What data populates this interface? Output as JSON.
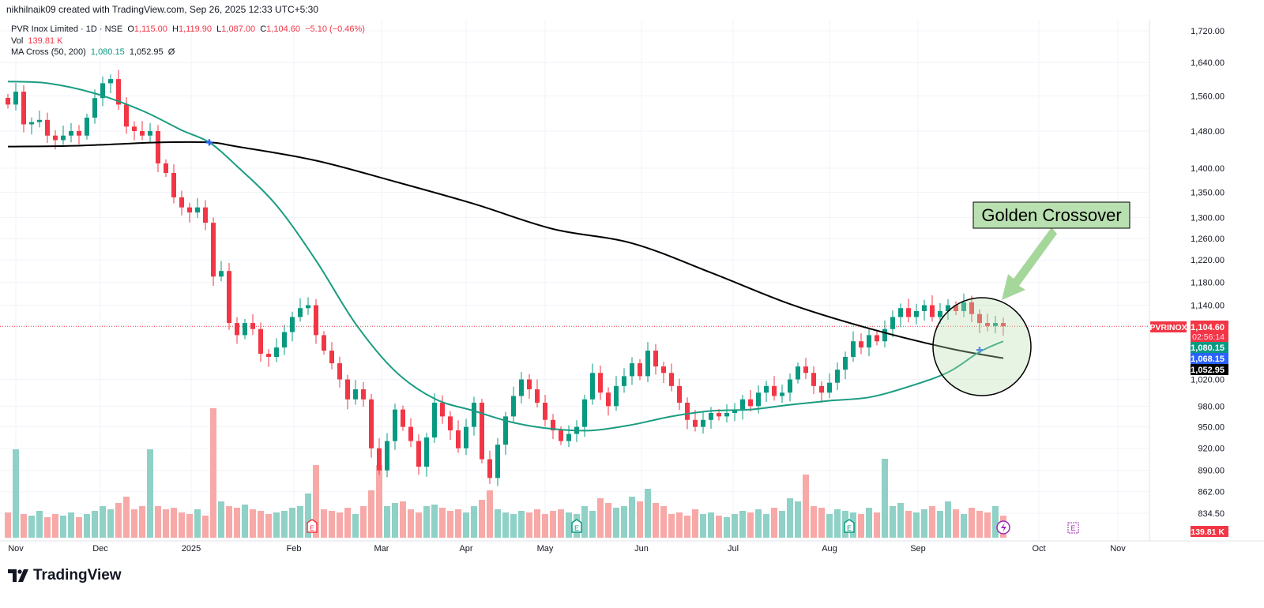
{
  "credit": "nikhilnaik09 created with TradingView.com, Sep 26, 2025 12:33 UTC+5:30",
  "legend": {
    "symbol": "PVR Inox Limited · 1D · NSE",
    "o_label": "O",
    "o": "1,115.00",
    "h_label": "H",
    "h": "1,119.90",
    "l_label": "L",
    "l": "1,087.00",
    "c_label": "C",
    "c": "1,104.60",
    "change": "−5.10 (−0.46%)",
    "vol_label": "Vol",
    "vol": "139.81 K",
    "ma_label": "MA Cross (50, 200)",
    "ma50": "1,080.15",
    "ma200": "1,052.95",
    "ma_icon": "Ø"
  },
  "labels": {
    "ticker": "PVRINOX",
    "price": "1,104.60",
    "countdown": "02:56:14",
    "ma50": "1,080.15",
    "blue": "1,068.15",
    "ma200": "1,052.95",
    "volume": "139.81 K"
  },
  "annotation": "Golden Crossover",
  "brand": "TradingView",
  "colors": {
    "up": "#089981",
    "down": "#f23645",
    "ma50": "#1a9c80",
    "ma200": "#000000",
    "vol_up": "#8fd1c6",
    "vol_down": "#f7a9a8",
    "annotation_bg": "#b9e0b0",
    "cross": "#2962ff"
  },
  "chart_data": {
    "type": "candlestick",
    "title": "PVR Inox Limited · 1D · NSE",
    "scale": "log",
    "ylim": [
      834.5,
      1720
    ],
    "y_ticks": [
      "1,720.00",
      "1,640.00",
      "1,560.00",
      "1,480.00",
      "1,400.00",
      "1,350.00",
      "1,300.00",
      "1,260.00",
      "1,220.00",
      "1,180.00",
      "1,140.00",
      "1,020.00",
      "980.00",
      "950.00",
      "920.00",
      "890.00",
      "862.00",
      "834.50"
    ],
    "y_tick_values": [
      1720,
      1640,
      1560,
      1480,
      1400,
      1350,
      1300,
      1260,
      1220,
      1180,
      1140,
      1020,
      980,
      950,
      920,
      890,
      862,
      834.5
    ],
    "x_ticks": [
      "Nov",
      "Dec",
      "2025",
      "Feb",
      "Mar",
      "Apr",
      "May",
      "Jun",
      "Jul",
      "Aug",
      "Sep",
      "Oct",
      "Nov"
    ],
    "x_tick_index": [
      1,
      11.7,
      23.2,
      36.2,
      47.3,
      58,
      68,
      80.2,
      91.8,
      104,
      115.2,
      130.5,
      140.5
    ],
    "closes": [
      1540,
      1570,
      1495,
      1500,
      1505,
      1470,
      1460,
      1470,
      1480,
      1470,
      1510,
      1555,
      1590,
      1600,
      1540,
      1490,
      1480,
      1470,
      1480,
      1410,
      1390,
      1340,
      1320,
      1310,
      1320,
      1290,
      1190,
      1200,
      1110,
      1090,
      1110,
      1100,
      1060,
      1055,
      1070,
      1095,
      1120,
      1135,
      1140,
      1090,
      1065,
      1045,
      1020,
      990,
      1005,
      990,
      920,
      890,
      930,
      975,
      950,
      930,
      895,
      935,
      985,
      965,
      945,
      920,
      950,
      985,
      905,
      880,
      925,
      965,
      995,
      1020,
      1005,
      985,
      960,
      945,
      930,
      940,
      950,
      990,
      1030,
      1000,
      980,
      1010,
      1025,
      1045,
      1025,
      1065,
      1040,
      1030,
      1010,
      985,
      960,
      950,
      960,
      970,
      965,
      970,
      975,
      990,
      980,
      1000,
      1010,
      995,
      1000,
      1020,
      1040,
      1030,
      1010,
      1000,
      1015,
      1035,
      1055,
      1080,
      1070,
      1090,
      1080,
      1100,
      1120,
      1135,
      1120,
      1130,
      1140,
      1120,
      1130,
      1140,
      1130,
      1145,
      1125,
      1110,
      1105,
      1110,
      1104.6
    ],
    "volumes_k": [
      160,
      560,
      150,
      140,
      170,
      130,
      150,
      140,
      160,
      130,
      150,
      170,
      200,
      180,
      220,
      260,
      180,
      200,
      560,
      200,
      180,
      190,
      160,
      150,
      180,
      140,
      820,
      230,
      200,
      190,
      210,
      180,
      170,
      150,
      160,
      170,
      190,
      200,
      280,
      460,
      180,
      170,
      160,
      190,
      150,
      200,
      300,
      460,
      200,
      220,
      230,
      180,
      160,
      200,
      210,
      190,
      170,
      180,
      160,
      200,
      240,
      300,
      180,
      160,
      150,
      170,
      160,
      180,
      150,
      170,
      180,
      160,
      150,
      200,
      170,
      250,
      220,
      190,
      200,
      260,
      230,
      310,
      220,
      200,
      150,
      160,
      140,
      180,
      150,
      160,
      140,
      130,
      150,
      170,
      160,
      180,
      150,
      190,
      170,
      250,
      230,
      400,
      200,
      190,
      150,
      180,
      170,
      160,
      150,
      190,
      160,
      500,
      200,
      220,
      170,
      160,
      180,
      200,
      170,
      230,
      180,
      150,
      190,
      170,
      160,
      200,
      139.81
    ],
    "series": [
      {
        "name": "MA 50",
        "points": [
          [
            0,
            1594
          ],
          [
            5,
            1590
          ],
          [
            11,
            1566
          ],
          [
            17,
            1526
          ],
          [
            22,
            1482
          ],
          [
            25.5,
            1455
          ],
          [
            29,
            1404
          ],
          [
            34,
            1324
          ],
          [
            39,
            1219
          ],
          [
            44,
            1109
          ],
          [
            49,
            1033
          ],
          [
            54,
            991
          ],
          [
            59,
            973
          ],
          [
            64,
            956
          ],
          [
            69,
            947
          ],
          [
            74,
            945
          ],
          [
            79,
            953
          ],
          [
            84,
            965
          ],
          [
            89,
            973
          ],
          [
            94,
            975
          ],
          [
            99,
            982
          ],
          [
            104,
            988
          ],
          [
            109,
            993
          ],
          [
            114,
            1009
          ],
          [
            119,
            1031
          ],
          [
            123,
            1063
          ],
          [
            126,
            1080.15
          ]
        ]
      },
      {
        "name": "MA 200",
        "points": [
          [
            0,
            1446
          ],
          [
            9,
            1448
          ],
          [
            19,
            1455
          ],
          [
            25.5,
            1455
          ],
          [
            29,
            1446
          ],
          [
            39,
            1416
          ],
          [
            49,
            1372
          ],
          [
            59,
            1327
          ],
          [
            69,
            1278
          ],
          [
            79,
            1251
          ],
          [
            89,
            1197
          ],
          [
            99,
            1142
          ],
          [
            109,
            1101
          ],
          [
            119,
            1069
          ],
          [
            126,
            1052.95
          ]
        ]
      }
    ],
    "crosses": [
      {
        "type": "death",
        "index": 25.5,
        "price": 1455
      },
      {
        "type": "golden",
        "index": 123,
        "price": 1066
      }
    ],
    "last_price": 1104.6
  }
}
